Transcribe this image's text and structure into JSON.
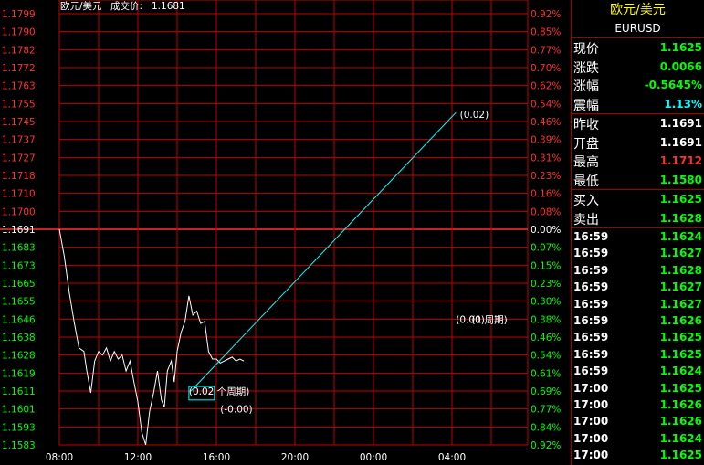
{
  "header": {
    "title": "欧元/美元",
    "trade_label": "成交价:",
    "trade_value": "1.1681"
  },
  "colors": {
    "grid": "#c00000",
    "baseline": "#ff3030",
    "price_line": "#ffffff",
    "trend_line": "#00ffff",
    "up": "#ff3030",
    "down": "#00ff00",
    "neutral": "#ffffff"
  },
  "chart_data": {
    "type": "line",
    "base_price": 1.1691,
    "y_ticks": [
      "1.1799",
      "1.1790",
      "1.1782",
      "1.1772",
      "1.1763",
      "1.1755",
      "1.1745",
      "1.1737",
      "1.1727",
      "1.1718",
      "1.1710",
      "1.1700",
      "1.1691",
      "1.1683",
      "1.1673",
      "1.1665",
      "1.1655",
      "1.1646",
      "1.1638",
      "1.1628",
      "1.1619",
      "1.1611",
      "1.1601",
      "1.1593",
      "1.1583"
    ],
    "pct_ticks": [
      "0.92%",
      "0.85%",
      "0.77%",
      "0.70%",
      "0.62%",
      "0.54%",
      "0.46%",
      "0.39%",
      "0.31%",
      "0.23%",
      "0.16%",
      "0.08%",
      "0.00%",
      "0.07%",
      "0.15%",
      "0.23%",
      "0.30%",
      "0.38%",
      "0.46%",
      "0.54%",
      "0.61%",
      "0.69%",
      "0.77%",
      "0.84%",
      "0.92%"
    ],
    "x_ticks": [
      "08:00",
      "12:00",
      "16:00",
      "20:00",
      "00:00",
      "04:00"
    ],
    "ylim": [
      1.1583,
      1.1799
    ],
    "x_hours_range": [
      0,
      26
    ],
    "series": [
      {
        "x": [
          0,
          0.25,
          0.5,
          0.75,
          1.0,
          1.25,
          1.4,
          1.6,
          1.8,
          2.0,
          2.2,
          2.4,
          2.6,
          2.8,
          3.0,
          3.2,
          3.4,
          3.6,
          3.8,
          4.0,
          4.2,
          4.4,
          4.6,
          4.8,
          5.0,
          5.2,
          5.35,
          5.5,
          5.7,
          5.85,
          6.0,
          6.2,
          6.4,
          6.6,
          6.8,
          7.0,
          7.2,
          7.4,
          7.6,
          7.8,
          8.0,
          8.2,
          8.4,
          8.6,
          8.8,
          9.0,
          9.2,
          9.4
        ],
        "values": [
          1.1691,
          1.1678,
          1.166,
          1.1645,
          1.1632,
          1.163,
          1.162,
          1.161,
          1.1625,
          1.163,
          1.1628,
          1.1632,
          1.1625,
          1.163,
          1.1626,
          1.1628,
          1.162,
          1.1625,
          1.1615,
          1.1605,
          1.159,
          1.1583,
          1.16,
          1.161,
          1.162,
          1.1606,
          1.1602,
          1.162,
          1.1625,
          1.1615,
          1.163,
          1.164,
          1.1645,
          1.1658,
          1.1648,
          1.165,
          1.1644,
          1.1645,
          1.163,
          1.1626,
          1.1626,
          1.1624,
          1.1625,
          1.1626,
          1.1627,
          1.1625,
          1.1626,
          1.1625
        ]
      }
    ],
    "trend_line": {
      "x": [
        6.7,
        20.2
      ],
      "y": [
        1.1611,
        1.175
      ]
    },
    "annotations": [
      {
        "text": "(0.02)",
        "x": 20.4,
        "y": 1.1749
      },
      {
        "text": "(0.00)",
        "x": 20.2,
        "y": 1.1646
      },
      {
        "text": "(1 周期)",
        "x": 21.0,
        "y": 1.1646
      },
      {
        "text": "(0.02 个周期)",
        "x": 6.6,
        "y": 1.1611
      },
      {
        "text": "(-0.00)",
        "x": 8.2,
        "y": 1.1601
      }
    ],
    "selection_box": {
      "x": [
        6.6,
        7.9
      ],
      "y": [
        1.1613,
        1.1606
      ]
    }
  },
  "sidebar": {
    "title": "欧元/美元",
    "code": "EURUSD",
    "quote_groups": [
      [
        {
          "label": "现价",
          "value": "1.1625",
          "tone": "down"
        },
        {
          "label": "涨跌",
          "value": "0.0066",
          "tone": "down"
        },
        {
          "label": "涨幅",
          "value": "-0.5645%",
          "tone": "down"
        },
        {
          "label": "震幅",
          "value": "1.13%",
          "tone": "cyan"
        }
      ],
      [
        {
          "label": "昨收",
          "value": "1.1691",
          "tone": "neutral"
        },
        {
          "label": "开盘",
          "value": "1.1691",
          "tone": "neutral"
        },
        {
          "label": "最高",
          "value": "1.1712",
          "tone": "up"
        },
        {
          "label": "最低",
          "value": "1.1580",
          "tone": "down"
        }
      ],
      [
        {
          "label": "买入",
          "value": "1.1625",
          "tone": "down"
        },
        {
          "label": "卖出",
          "value": "1.1628",
          "tone": "down"
        }
      ]
    ],
    "ticks": [
      {
        "time": "16:59",
        "price": "1.1624"
      },
      {
        "time": "16:59",
        "price": "1.1627"
      },
      {
        "time": "16:59",
        "price": "1.1628"
      },
      {
        "time": "16:59",
        "price": "1.1627"
      },
      {
        "time": "16:59",
        "price": "1.1627"
      },
      {
        "time": "16:59",
        "price": "1.1626"
      },
      {
        "time": "16:59",
        "price": "1.1625"
      },
      {
        "time": "16:59",
        "price": "1.1625"
      },
      {
        "time": "16:59",
        "price": "1.1624"
      },
      {
        "time": "17:00",
        "price": "1.1625"
      },
      {
        "time": "17:00",
        "price": "1.1626"
      },
      {
        "time": "17:00",
        "price": "1.1626"
      },
      {
        "time": "17:00",
        "price": "1.1624"
      },
      {
        "time": "17:00",
        "price": "1.1625"
      }
    ]
  }
}
